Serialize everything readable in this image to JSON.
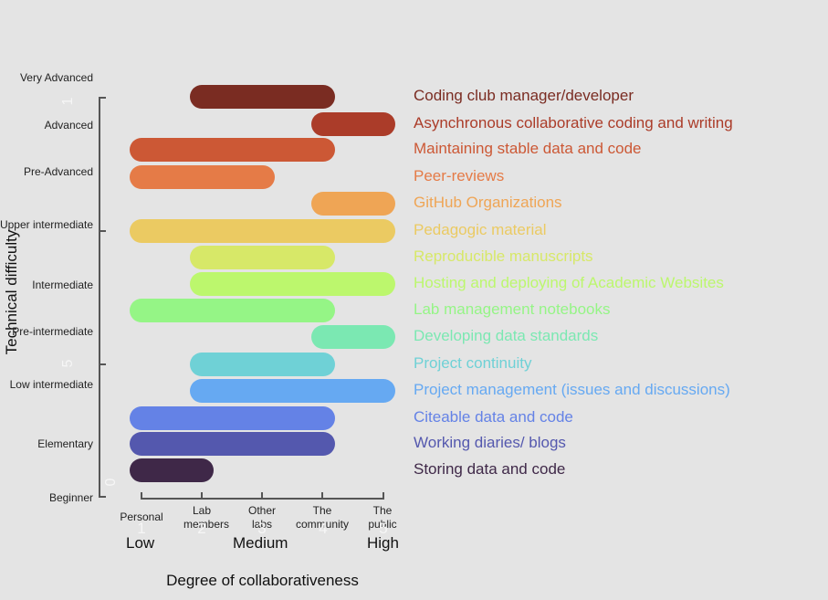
{
  "chart_data": {
    "type": "bar",
    "subtype": "horizontal-range",
    "title": "",
    "xlabel": "Degree of collaborativeness",
    "ylabel": "Technical difficulty",
    "x_ticks": [
      1,
      2,
      3,
      4,
      5
    ],
    "x_tick_labels": [
      "Personal",
      "Lab members",
      "Other labs",
      "The community",
      "The public"
    ],
    "x_level_labels": [
      "Low",
      "Medium",
      "High"
    ],
    "xlim": [
      1,
      5
    ],
    "y_tick_numbers": [
      "0",
      "5",
      "1"
    ],
    "y_level_labels": [
      "Very Advanced",
      "Advanced",
      "Pre-Advanced",
      "Upper intermediate",
      "Intermediate",
      "Pre-intermediate",
      "Low intermediate",
      "Elementary",
      "Beginner"
    ],
    "grid": false,
    "legend_position": "right",
    "series": [
      {
        "name": "Coding club manager/developer",
        "x_start": 2,
        "x_end": 4,
        "color": "#7a2c22"
      },
      {
        "name": "Asynchronous collaborative coding and writing",
        "x_start": 4,
        "x_end": 5,
        "color": "#ab3c29"
      },
      {
        "name": "Maintaining stable data and code",
        "x_start": 1,
        "x_end": 4,
        "color": "#cc5835"
      },
      {
        "name": "Peer-reviews",
        "x_start": 1,
        "x_end": 3,
        "color": "#e57b47"
      },
      {
        "name": "GitHub Organizations",
        "x_start": 4,
        "x_end": 5,
        "color": "#efa555"
      },
      {
        "name": "Pedagogic material",
        "x_start": 1,
        "x_end": 5,
        "color": "#ebca62"
      },
      {
        "name": "Reproducible manuscripts",
        "x_start": 2,
        "x_end": 4,
        "color": "#d7e868"
      },
      {
        "name": "Hosting and deploying of Academic Websites",
        "x_start": 2,
        "x_end": 5,
        "color": "#bcf76d"
      },
      {
        "name": "Lab management notebooks",
        "x_start": 1,
        "x_end": 4,
        "color": "#95f586"
      },
      {
        "name": "Developing data standards",
        "x_start": 4,
        "x_end": 5,
        "color": "#7be8b2"
      },
      {
        "name": "Project continuity",
        "x_start": 2,
        "x_end": 4,
        "color": "#6fd1d6"
      },
      {
        "name": "Project management (issues and discussions)",
        "x_start": 2,
        "x_end": 5,
        "color": "#66a9f2"
      },
      {
        "name": "Citeable data and code",
        "x_start": 1,
        "x_end": 4,
        "color": "#6482e6"
      },
      {
        "name": "Working diaries/ blogs",
        "x_start": 1,
        "x_end": 4,
        "color": "#5458ae"
      },
      {
        "name": "Storing data and code",
        "x_start": 1,
        "x_end": 2,
        "color": "#3f2848"
      }
    ]
  }
}
